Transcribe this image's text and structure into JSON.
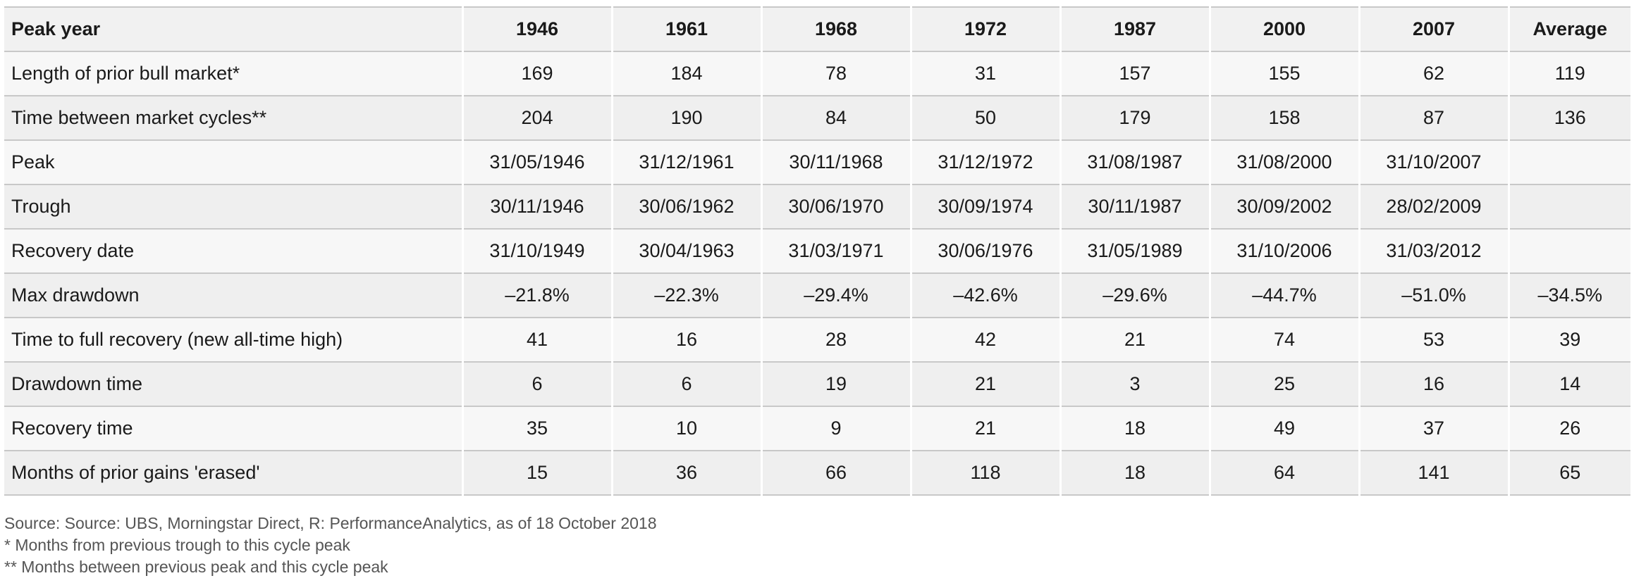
{
  "table": {
    "headers": [
      "Peak year",
      "1946",
      "1961",
      "1968",
      "1972",
      "1987",
      "2000",
      "2007",
      "Average"
    ],
    "rows": [
      [
        "Length of prior bull market*",
        "169",
        "184",
        "78",
        "31",
        "157",
        "155",
        "62",
        "119"
      ],
      [
        "Time between market cycles**",
        "204",
        "190",
        "84",
        "50",
        "179",
        "158",
        "87",
        "136"
      ],
      [
        "Peak",
        "31/05/1946",
        "31/12/1961",
        "30/11/1968",
        "31/12/1972",
        "31/08/1987",
        "31/08/2000",
        "31/10/2007",
        ""
      ],
      [
        "Trough",
        "30/11/1946",
        "30/06/1962",
        "30/06/1970",
        "30/09/1974",
        "30/11/1987",
        "30/09/2002",
        "28/02/2009",
        ""
      ],
      [
        "Recovery date",
        "31/10/1949",
        "30/04/1963",
        "31/03/1971",
        "30/06/1976",
        "31/05/1989",
        "31/10/2006",
        "31/03/2012",
        ""
      ],
      [
        "Max drawdown",
        "–21.8%",
        "–22.3%",
        "–29.4%",
        "–42.6%",
        "–29.6%",
        "–44.7%",
        "–51.0%",
        "–34.5%"
      ],
      [
        "Time to full recovery (new all-time high)",
        "41",
        "16",
        "28",
        "42",
        "21",
        "74",
        "53",
        "39"
      ],
      [
        "Drawdown time",
        "6",
        "6",
        "19",
        "21",
        "3",
        "25",
        "16",
        "14"
      ],
      [
        "Recovery time",
        "35",
        "10",
        "9",
        "21",
        "18",
        "49",
        "37",
        "26"
      ],
      [
        "Months of prior gains 'erased'",
        "15",
        "36",
        "66",
        "118",
        "18",
        "64",
        "141",
        "65"
      ]
    ]
  },
  "notes": {
    "source": "Source: Source: UBS, Morningstar Direct, R: PerformanceAnalytics, as of 18 October 2018",
    "footnote_1": "* Months from previous trough to this cycle peak",
    "footnote_2": "** Months between previous peak and this cycle peak"
  }
}
